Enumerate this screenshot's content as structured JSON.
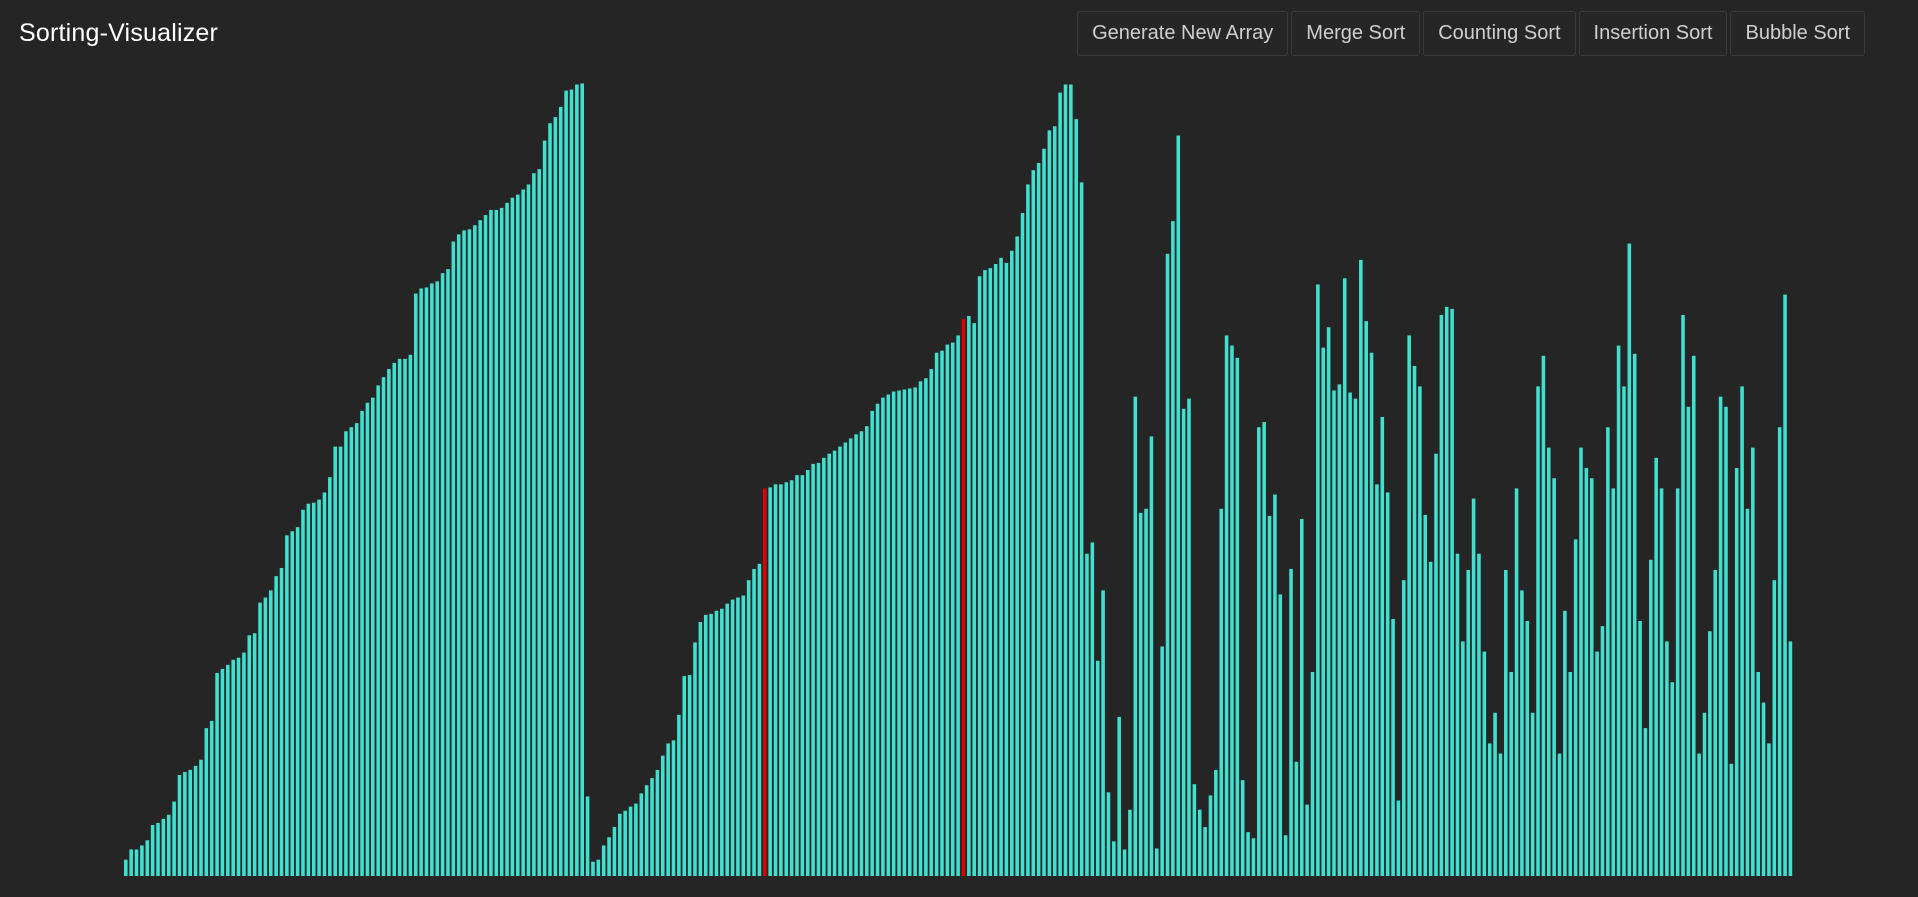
{
  "app": {
    "title": "Sorting-Visualizer"
  },
  "toolbar": {
    "buttons": [
      {
        "name": "generate-new-array-button",
        "label": "Generate New Array"
      },
      {
        "name": "merge-sort-button",
        "label": "Merge Sort"
      },
      {
        "name": "counting-sort-button",
        "label": "Counting Sort"
      },
      {
        "name": "insertion-sort-button",
        "label": "Insertion Sort"
      },
      {
        "name": "bubble-sort-button",
        "label": "Bubble Sort"
      }
    ]
  },
  "colors": {
    "background": "#252525",
    "bar": "#40e0d0",
    "bar_active": "#e00000",
    "button_border": "#3a3a3a",
    "button_text": "#cfcfcf",
    "title_text": "#ffffff"
  },
  "chart_data": {
    "type": "bar",
    "ylim": [
      0,
      800
    ],
    "highlighted_indices": [
      119,
      156
    ],
    "values": [
      16,
      26,
      26,
      30,
      35,
      50,
      52,
      56,
      60,
      73,
      99,
      102,
      104,
      108,
      114,
      145,
      152,
      199,
      203,
      207,
      212,
      214,
      219,
      236,
      238,
      268,
      273,
      280,
      294,
      302,
      334,
      338,
      342,
      359,
      365,
      366,
      369,
      376,
      391,
      421,
      421,
      436,
      440,
      444,
      456,
      464,
      469,
      481,
      489,
      497,
      503,
      507,
      507,
      511,
      571,
      576,
      577,
      581,
      583,
      591,
      595,
      622,
      629,
      633,
      634,
      638,
      643,
      648,
      653,
      653,
      655,
      660,
      665,
      668,
      673,
      678,
      689,
      693,
      721,
      738,
      744,
      754,
      770,
      771,
      776,
      777,
      78,
      14,
      16,
      30,
      38,
      48,
      61,
      64,
      68,
      71,
      81,
      89,
      96,
      104,
      118,
      130,
      133,
      158,
      196,
      197,
      229,
      249,
      256,
      257,
      260,
      262,
      267,
      271,
      273,
      275,
      290,
      301,
      306,
      380,
      381,
      384,
      384,
      386,
      388,
      393,
      393,
      398,
      404,
      405,
      410,
      414,
      417,
      421,
      425,
      429,
      433,
      436,
      441,
      456,
      463,
      469,
      472,
      475,
      476,
      477,
      478,
      479,
      485,
      488,
      497,
      513,
      515,
      521,
      523,
      530,
      546,
      549,
      542,
      588,
      594,
      596,
      600,
      606,
      601,
      613,
      627,
      650,
      678,
      692,
      699,
      713,
      731,
      735,
      768,
      776,
      776,
      742,
      680,
      316,
      327,
      211,
      280,
      82,
      34,
      156,
      26,
      65,
      470,
      356,
      360,
      431,
      27,
      225,
      610,
      642,
      726,
      458,
      468,
      90,
      65,
      48,
      79,
      104,
      360,
      530,
      520,
      508,
      94,
      43,
      37,
      440,
      445,
      353,
      374,
      276,
      40,
      301,
      112,
      350,
      70,
      200,
      580,
      518,
      538,
      476,
      482,
      586,
      474,
      468,
      604,
      544,
      513,
      384,
      450,
      376,
      252,
      74,
      290,
      530,
      500,
      480,
      354,
      308,
      414,
      550,
      558,
      556,
      316,
      230,
      300,
      370,
      316,
      220,
      130,
      160,
      120,
      300,
      200,
      380,
      280,
      250,
      160,
      480,
      510,
      420,
      390,
      120,
      260,
      200,
      330,
      420,
      400,
      390,
      220,
      245,
      440,
      380,
      520,
      480,
      620,
      512,
      250,
      145,
      310,
      410,
      380,
      230,
      190,
      380,
      550,
      460,
      510,
      120,
      160,
      240,
      300,
      470,
      460,
      110,
      400,
      480,
      360,
      420,
      200,
      170,
      130,
      290,
      440,
      570,
      230
    ]
  }
}
